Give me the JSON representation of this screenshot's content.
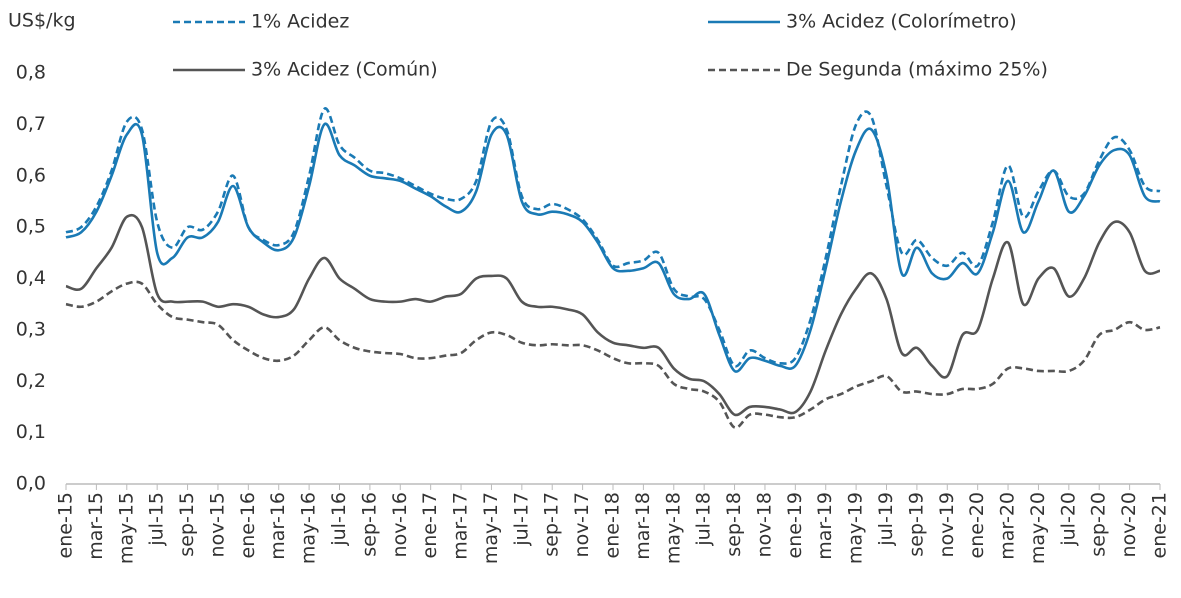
{
  "chart_data": {
    "type": "line",
    "y_label": "US$/kg",
    "categories": [
      "ene-15",
      null,
      "mar-15",
      null,
      "may-15",
      null,
      "jul-15",
      null,
      "sep-15",
      null,
      "nov-15",
      null,
      "ene-16",
      null,
      "mar-16",
      null,
      "may-16",
      null,
      "jul-16",
      null,
      "sep-16",
      null,
      "nov-16",
      null,
      "ene-17",
      null,
      "mar-17",
      null,
      "may-17",
      null,
      "jul-17",
      null,
      "sep-17",
      null,
      "nov-17",
      null,
      "ene-18",
      null,
      "mar-18",
      null,
      "may-18",
      null,
      "jul-18",
      null,
      "sep-18",
      null,
      "nov-18",
      null,
      "ene-19",
      null,
      "mar-19",
      null,
      "may-19",
      null,
      "jul-19",
      null,
      "sep-19",
      null,
      "nov-19",
      null,
      "ene-20",
      null,
      "mar-20",
      null,
      "may-20",
      null,
      "jul-20",
      null,
      "sep-20",
      null,
      "nov-20",
      null,
      "ene-21"
    ],
    "series": [
      {
        "name": "1% Acidez",
        "color": "#1a7ab5",
        "dashed": true,
        "values": [
          0.49,
          0.5,
          0.54,
          0.61,
          0.705,
          0.69,
          0.51,
          0.46,
          0.5,
          0.495,
          0.53,
          0.6,
          0.5,
          0.475,
          0.465,
          0.49,
          0.6,
          0.73,
          0.66,
          0.635,
          0.61,
          0.605,
          0.595,
          0.58,
          0.565,
          0.555,
          0.555,
          0.59,
          0.705,
          0.69,
          0.56,
          0.535,
          0.545,
          0.535,
          0.515,
          0.475,
          0.425,
          0.43,
          0.435,
          0.45,
          0.38,
          0.365,
          0.36,
          0.3,
          0.23,
          0.26,
          0.245,
          0.235,
          0.245,
          0.32,
          0.44,
          0.58,
          0.7,
          0.715,
          0.58,
          0.45,
          0.475,
          0.44,
          0.425,
          0.45,
          0.425,
          0.51,
          0.62,
          0.52,
          0.57,
          0.61,
          0.56,
          0.565,
          0.63,
          0.675,
          0.65,
          0.58,
          0.57
        ]
      },
      {
        "name": "3% Acidez (Colorímetro)",
        "color": "#1a7ab5",
        "dashed": false,
        "values": [
          0.48,
          0.49,
          0.53,
          0.6,
          0.68,
          0.68,
          0.45,
          0.44,
          0.48,
          0.48,
          0.51,
          0.58,
          0.5,
          0.47,
          0.455,
          0.48,
          0.58,
          0.7,
          0.64,
          0.62,
          0.6,
          0.595,
          0.59,
          0.575,
          0.56,
          0.54,
          0.53,
          0.57,
          0.68,
          0.68,
          0.55,
          0.525,
          0.53,
          0.525,
          0.51,
          0.47,
          0.42,
          0.415,
          0.42,
          0.43,
          0.37,
          0.36,
          0.37,
          0.29,
          0.22,
          0.245,
          0.24,
          0.23,
          0.23,
          0.3,
          0.42,
          0.55,
          0.65,
          0.69,
          0.6,
          0.41,
          0.46,
          0.41,
          0.4,
          0.43,
          0.41,
          0.49,
          0.59,
          0.49,
          0.55,
          0.61,
          0.53,
          0.56,
          0.62,
          0.65,
          0.64,
          0.56,
          0.55
        ]
      },
      {
        "name": "3% Acidez (Común)",
        "color": "#555555",
        "dashed": false,
        "values": [
          0.385,
          0.38,
          0.42,
          0.46,
          0.52,
          0.5,
          0.37,
          0.355,
          0.355,
          0.355,
          0.345,
          0.35,
          0.345,
          0.33,
          0.325,
          0.34,
          0.4,
          0.44,
          0.4,
          0.38,
          0.36,
          0.355,
          0.355,
          0.36,
          0.355,
          0.365,
          0.37,
          0.4,
          0.405,
          0.4,
          0.355,
          0.345,
          0.345,
          0.34,
          0.33,
          0.295,
          0.275,
          0.27,
          0.265,
          0.265,
          0.225,
          0.205,
          0.2,
          0.175,
          0.135,
          0.15,
          0.15,
          0.145,
          0.14,
          0.18,
          0.26,
          0.33,
          0.38,
          0.41,
          0.36,
          0.255,
          0.265,
          0.23,
          0.21,
          0.29,
          0.3,
          0.4,
          0.47,
          0.35,
          0.4,
          0.42,
          0.365,
          0.4,
          0.47,
          0.51,
          0.49,
          0.415,
          0.415
        ]
      },
      {
        "name": "De Segunda (máximo 25%)",
        "color": "#555555",
        "dashed": true,
        "values": [
          0.35,
          0.345,
          0.355,
          0.375,
          0.39,
          0.39,
          0.35,
          0.325,
          0.32,
          0.315,
          0.31,
          0.28,
          0.26,
          0.245,
          0.24,
          0.25,
          0.28,
          0.305,
          0.28,
          0.265,
          0.258,
          0.255,
          0.253,
          0.245,
          0.245,
          0.25,
          0.255,
          0.28,
          0.295,
          0.29,
          0.275,
          0.27,
          0.272,
          0.27,
          0.27,
          0.26,
          0.245,
          0.235,
          0.235,
          0.23,
          0.195,
          0.185,
          0.18,
          0.16,
          0.11,
          0.135,
          0.135,
          0.13,
          0.13,
          0.145,
          0.165,
          0.175,
          0.19,
          0.2,
          0.21,
          0.18,
          0.18,
          0.175,
          0.175,
          0.185,
          0.185,
          0.195,
          0.225,
          0.225,
          0.22,
          0.22,
          0.22,
          0.24,
          0.29,
          0.3,
          0.315,
          0.3,
          0.305
        ]
      }
    ],
    "ylim": [
      0,
      0.8
    ],
    "yticks": [
      {
        "value": 0,
        "label": "0,0"
      },
      {
        "value": 0.1,
        "label": "0,1"
      },
      {
        "value": 0.2,
        "label": "0,2"
      },
      {
        "value": 0.3,
        "label": "0,3"
      },
      {
        "value": 0.4,
        "label": "0,4"
      },
      {
        "value": 0.5,
        "label": "0,5"
      },
      {
        "value": 0.6,
        "label": "0,6"
      },
      {
        "value": 0.7,
        "label": "0,7"
      },
      {
        "value": 0.8,
        "label": "0,8"
      }
    ],
    "grid": false
  }
}
